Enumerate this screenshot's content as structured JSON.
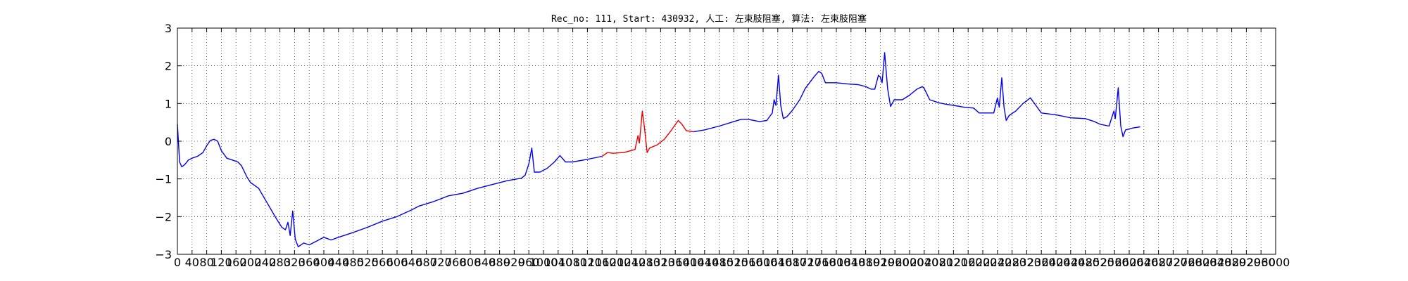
{
  "chart_data": {
    "type": "line",
    "title": "Rec_no: 111, Start: 430932, 人工: 左束肢阻塞, 算法: 左束肢阻塞",
    "xlabel": "",
    "ylabel": "",
    "xlim": [
      0,
      3000
    ],
    "ylim": [
      -3,
      3
    ],
    "grid": true,
    "yticks": [
      3,
      2,
      1,
      0,
      -1,
      -2,
      -3
    ],
    "ytick_labels": [
      "3",
      "2",
      "1",
      "0",
      "−1",
      "−2",
      "−3"
    ],
    "xtick_step": 40,
    "xtick_labels": [
      "0",
      "40",
      "80",
      "120",
      "160",
      "200",
      "240",
      "280",
      "320",
      "360",
      "400",
      "440",
      "480",
      "520",
      "560",
      "600",
      "640",
      "680",
      "720",
      "760",
      "800",
      "840",
      "880",
      "920",
      "960",
      "1000",
      "1040",
      "1080",
      "1120",
      "1160",
      "1200",
      "1240",
      "1280",
      "1320",
      "1360",
      "1400",
      "1440",
      "1480",
      "1520",
      "1560",
      "1600",
      "1640",
      "1680",
      "1720",
      "1760",
      "1800",
      "1840",
      "1880",
      "1920",
      "1960",
      "2000",
      "2040",
      "2080",
      "2120",
      "2160",
      "2200",
      "2240",
      "2280",
      "2320",
      "2360",
      "2400",
      "2440",
      "2480",
      "2520",
      "2560",
      "2600",
      "2640",
      "2680",
      "2720",
      "2760",
      "2800",
      "2840",
      "2880",
      "2920",
      "2960",
      "3000"
    ],
    "series": [
      {
        "color": "#0000ee",
        "points": [
          [
            0,
            0.45
          ],
          [
            6,
            -0.55
          ],
          [
            12,
            -0.68
          ],
          [
            20,
            -0.62
          ],
          [
            30,
            -0.5
          ],
          [
            40,
            -0.45
          ],
          [
            55,
            -0.4
          ],
          [
            70,
            -0.3
          ],
          [
            80,
            -0.12
          ],
          [
            90,
            0.02
          ],
          [
            100,
            0.05
          ],
          [
            110,
            0.0
          ],
          [
            120,
            -0.25
          ],
          [
            135,
            -0.45
          ],
          [
            150,
            -0.5
          ],
          [
            165,
            -0.55
          ],
          [
            175,
            -0.65
          ],
          [
            190,
            -0.95
          ],
          [
            200,
            -1.1
          ],
          [
            212,
            -1.18
          ],
          [
            222,
            -1.25
          ],
          [
            240,
            -1.55
          ],
          [
            255,
            -1.8
          ],
          [
            270,
            -2.05
          ],
          [
            285,
            -2.28
          ],
          [
            295,
            -2.35
          ],
          [
            302,
            -2.15
          ],
          [
            308,
            -2.5
          ],
          [
            315,
            -1.85
          ],
          [
            322,
            -2.6
          ],
          [
            330,
            -2.8
          ],
          [
            345,
            -2.7
          ],
          [
            360,
            -2.75
          ],
          [
            380,
            -2.65
          ],
          [
            400,
            -2.55
          ],
          [
            420,
            -2.62
          ],
          [
            440,
            -2.55
          ],
          [
            480,
            -2.42
          ],
          [
            520,
            -2.28
          ],
          [
            560,
            -2.12
          ],
          [
            600,
            -2.0
          ],
          [
            640,
            -1.82
          ],
          [
            660,
            -1.72
          ],
          [
            700,
            -1.6
          ],
          [
            740,
            -1.45
          ],
          [
            780,
            -1.38
          ],
          [
            820,
            -1.25
          ],
          [
            860,
            -1.15
          ],
          [
            900,
            -1.05
          ],
          [
            940,
            -0.98
          ],
          [
            950,
            -0.9
          ],
          [
            960,
            -0.6
          ],
          [
            968,
            -0.18
          ],
          [
            975,
            -0.82
          ],
          [
            990,
            -0.82
          ],
          [
            1010,
            -0.72
          ],
          [
            1030,
            -0.55
          ],
          [
            1045,
            -0.38
          ],
          [
            1060,
            -0.55
          ],
          [
            1080,
            -0.55
          ],
          [
            1120,
            -0.48
          ],
          [
            1160,
            -0.4
          ]
        ]
      },
      {
        "color": "#ee0000",
        "points": [
          [
            1160,
            -0.4
          ],
          [
            1175,
            -0.3
          ],
          [
            1190,
            -0.32
          ],
          [
            1220,
            -0.3
          ],
          [
            1250,
            -0.22
          ],
          [
            1258,
            0.15
          ],
          [
            1262,
            -0.05
          ],
          [
            1270,
            0.8
          ],
          [
            1276,
            0.35
          ],
          [
            1283,
            -0.3
          ],
          [
            1290,
            -0.18
          ],
          [
            1310,
            -0.1
          ],
          [
            1330,
            0.05
          ],
          [
            1350,
            0.3
          ],
          [
            1368,
            0.55
          ],
          [
            1378,
            0.45
          ],
          [
            1390,
            0.28
          ],
          [
            1410,
            0.25
          ]
        ]
      },
      {
        "color": "#0000ee",
        "points": [
          [
            1410,
            0.25
          ],
          [
            1440,
            0.3
          ],
          [
            1480,
            0.4
          ],
          [
            1520,
            0.52
          ],
          [
            1540,
            0.58
          ],
          [
            1560,
            0.58
          ],
          [
            1590,
            0.52
          ],
          [
            1610,
            0.55
          ],
          [
            1625,
            0.75
          ],
          [
            1630,
            1.1
          ],
          [
            1635,
            0.95
          ],
          [
            1642,
            1.75
          ],
          [
            1648,
            0.95
          ],
          [
            1655,
            0.6
          ],
          [
            1665,
            0.65
          ],
          [
            1680,
            0.82
          ],
          [
            1700,
            1.1
          ],
          [
            1715,
            1.4
          ],
          [
            1740,
            1.72
          ],
          [
            1752,
            1.85
          ],
          [
            1760,
            1.8
          ],
          [
            1770,
            1.55
          ],
          [
            1800,
            1.55
          ],
          [
            1830,
            1.52
          ],
          [
            1860,
            1.5
          ],
          [
            1880,
            1.45
          ],
          [
            1895,
            1.38
          ],
          [
            1905,
            1.38
          ],
          [
            1915,
            1.75
          ],
          [
            1920,
            1.7
          ],
          [
            1925,
            1.55
          ],
          [
            1932,
            2.35
          ],
          [
            1940,
            1.4
          ],
          [
            1948,
            0.92
          ],
          [
            1958,
            1.1
          ],
          [
            1980,
            1.1
          ],
          [
            2000,
            1.22
          ],
          [
            2020,
            1.38
          ],
          [
            2035,
            1.45
          ],
          [
            2040,
            1.4
          ],
          [
            2055,
            1.1
          ],
          [
            2080,
            1.02
          ],
          [
            2100,
            0.98
          ],
          [
            2120,
            0.95
          ],
          [
            2150,
            0.9
          ],
          [
            2175,
            0.88
          ],
          [
            2190,
            0.75
          ],
          [
            2210,
            0.75
          ],
          [
            2230,
            0.75
          ],
          [
            2240,
            1.15
          ],
          [
            2245,
            0.9
          ],
          [
            2252,
            1.68
          ],
          [
            2258,
            0.9
          ],
          [
            2264,
            0.55
          ],
          [
            2272,
            0.68
          ],
          [
            2290,
            0.8
          ],
          [
            2310,
            1.0
          ],
          [
            2330,
            1.15
          ],
          [
            2345,
            0.95
          ],
          [
            2360,
            0.75
          ],
          [
            2400,
            0.7
          ],
          [
            2440,
            0.62
          ],
          [
            2480,
            0.6
          ],
          [
            2505,
            0.52
          ],
          [
            2520,
            0.45
          ],
          [
            2545,
            0.4
          ],
          [
            2558,
            0.8
          ],
          [
            2562,
            0.6
          ],
          [
            2570,
            1.42
          ],
          [
            2577,
            0.4
          ],
          [
            2583,
            0.12
          ],
          [
            2590,
            0.3
          ],
          [
            2610,
            0.35
          ],
          [
            2630,
            0.38
          ]
        ]
      }
    ]
  }
}
